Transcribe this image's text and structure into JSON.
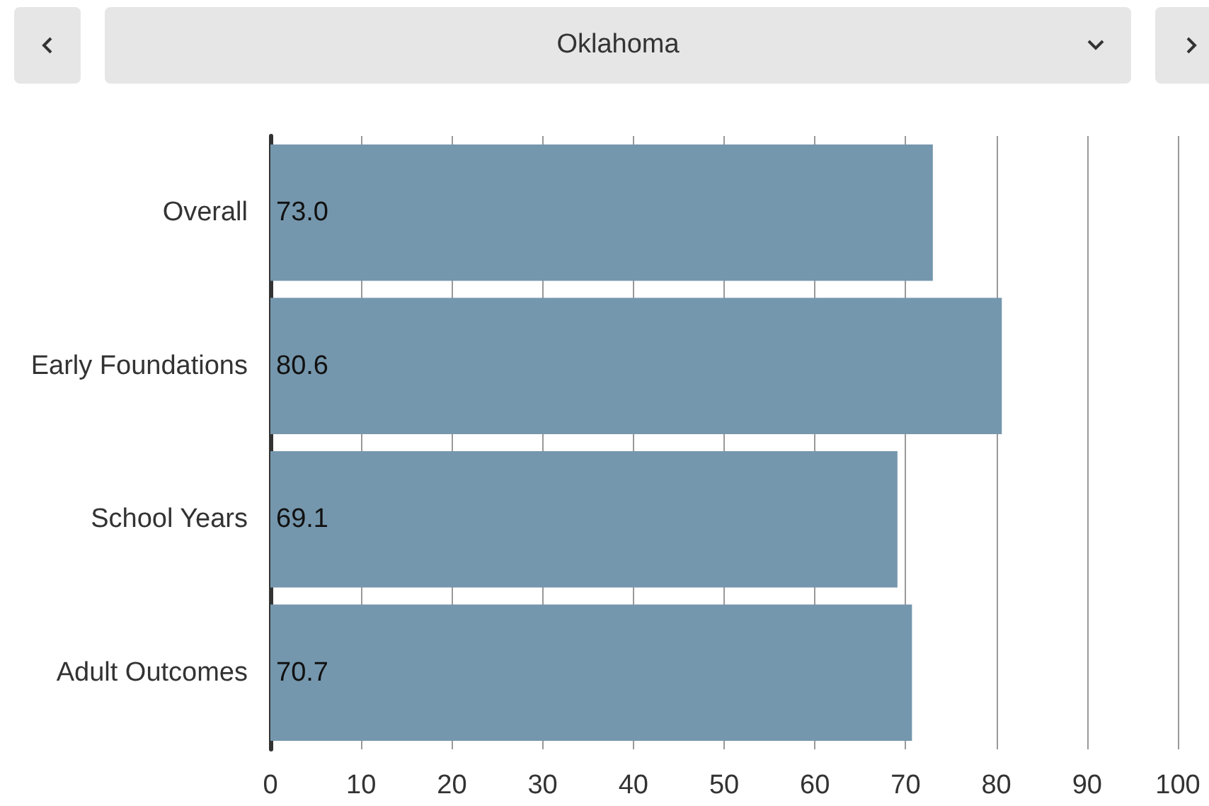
{
  "chart_data": {
    "type": "bar",
    "title": "Oklahoma",
    "orientation": "horizontal",
    "categories": [
      "Overall",
      "Early Foundations",
      "School Years",
      "Adult Outcomes"
    ],
    "values": [
      73.0,
      80.6,
      69.1,
      70.7
    ],
    "value_labels": [
      "73.0",
      "80.6",
      "69.1",
      "70.7"
    ],
    "color": "#7597ad",
    "xlim": [
      0,
      100
    ],
    "xticks": [
      0,
      10,
      20,
      30,
      40,
      50,
      60,
      70,
      80,
      90,
      100
    ],
    "grid": "x"
  }
}
